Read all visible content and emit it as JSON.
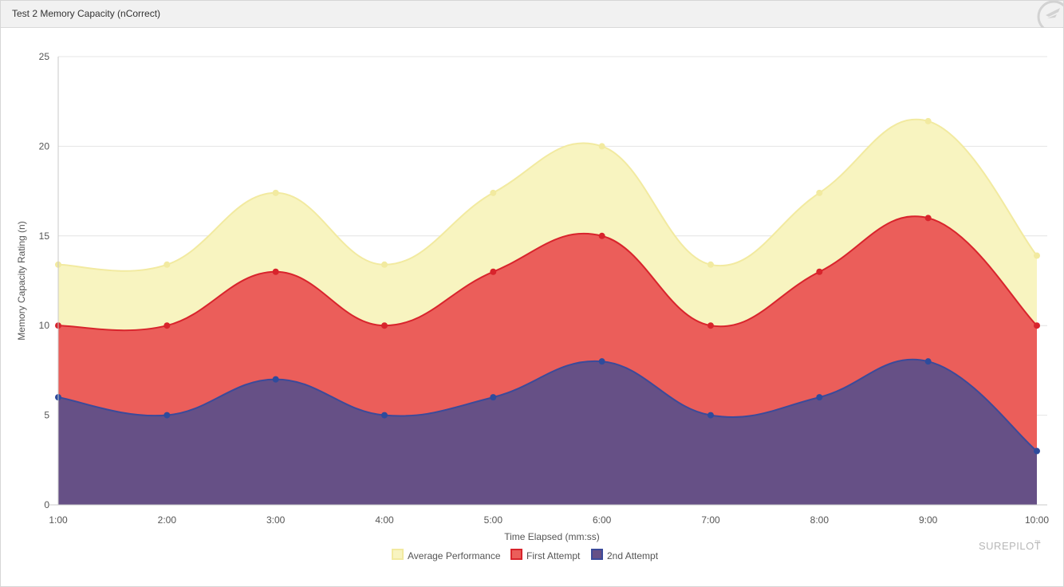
{
  "header": {
    "title": "Test 2 Memory Capacity (nCorrect)",
    "logo_icon": "surepilot-plane-icon"
  },
  "branding": {
    "text": "SUREPILOT",
    "tm": "™"
  },
  "chart_data": {
    "type": "area",
    "categories": [
      "1:00",
      "2:00",
      "3:00",
      "4:00",
      "5:00",
      "6:00",
      "7:00",
      "8:00",
      "9:00",
      "10:00"
    ],
    "xlabel": "Time Elapsed (mm:ss)",
    "ylabel": "Memory Capacity Rating (n)",
    "ylim": [
      0,
      25
    ],
    "yticks": [
      0,
      5,
      10,
      15,
      20,
      25
    ],
    "grid": true,
    "legend_position": "bottom",
    "series": [
      {
        "name": "Average Performance",
        "values": [
          13.4,
          13.4,
          17.4,
          13.4,
          17.4,
          20,
          13.4,
          17.4,
          21.4,
          13.9
        ],
        "fill": "#f8f4c0",
        "stroke": "#f2eaa0",
        "marker": "#f2eaa0"
      },
      {
        "name": "First Attempt",
        "values": [
          10,
          10,
          13,
          10,
          13,
          15,
          10,
          13,
          16,
          10
        ],
        "fill": "#eb5e5a",
        "stroke": "#d8242c",
        "marker": "#d8242c"
      },
      {
        "name": "2nd Attempt",
        "values": [
          6,
          5,
          7,
          5,
          6,
          8,
          5,
          6,
          8,
          3
        ],
        "fill": "#665086",
        "stroke": "#3b4a9a",
        "marker": "#2e4b9c"
      }
    ]
  }
}
